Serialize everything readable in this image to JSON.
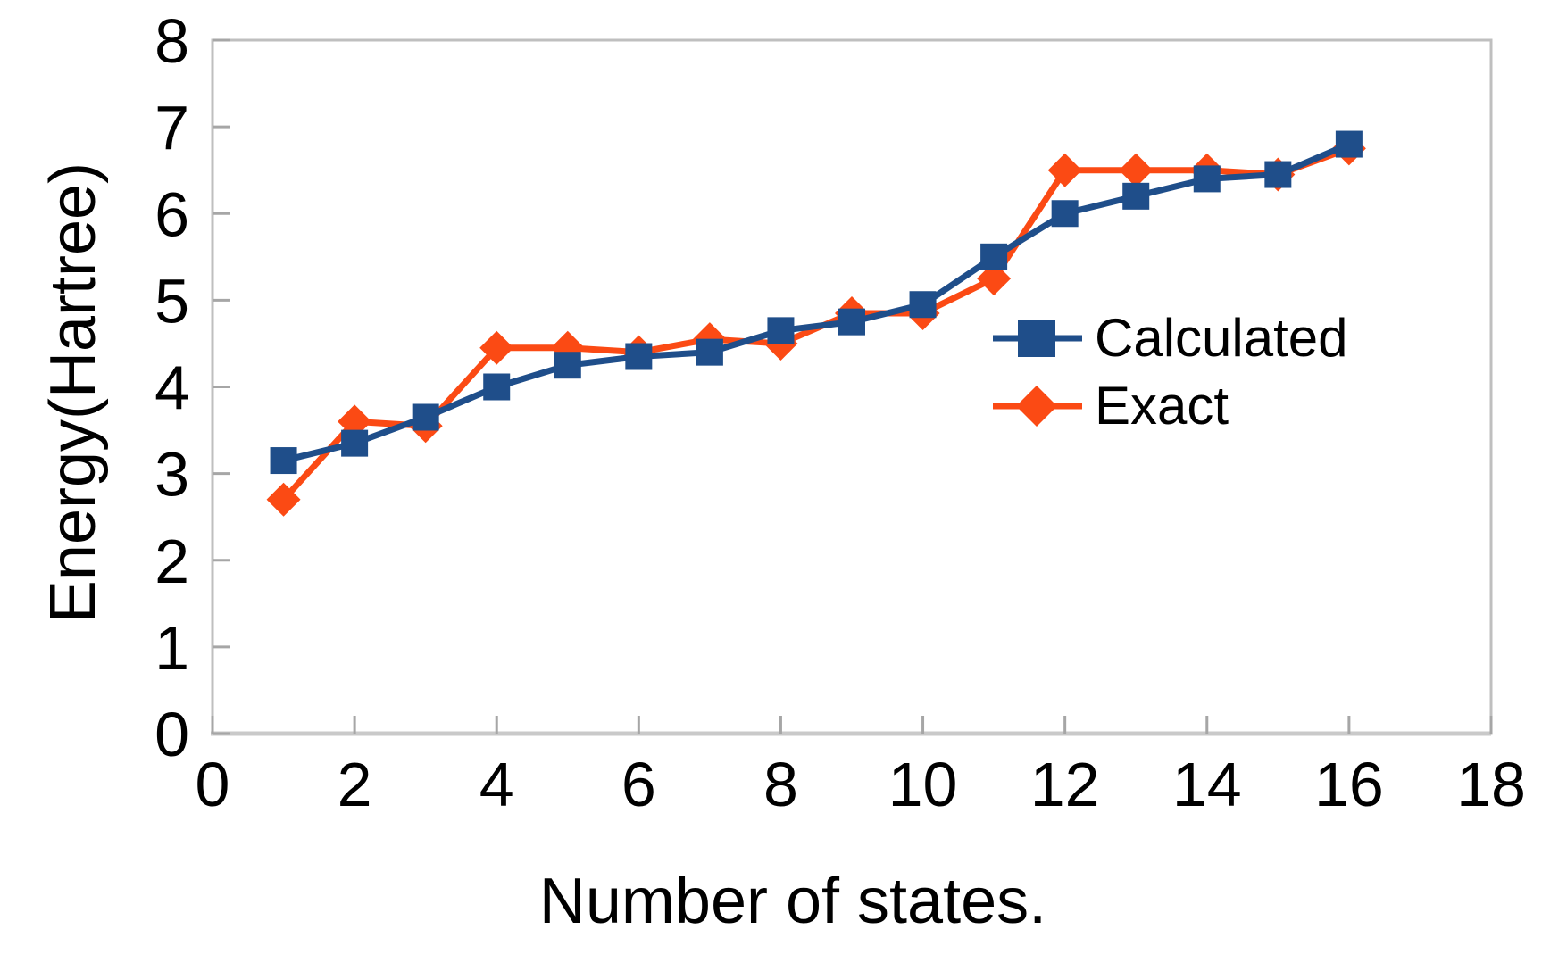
{
  "chart_data": {
    "type": "line",
    "title": "",
    "xlabel": "Number of states.",
    "ylabel": "Energy(Hartree)",
    "xlim": [
      0,
      18
    ],
    "ylim": [
      0,
      8
    ],
    "x_ticks": [
      0,
      2,
      4,
      6,
      8,
      10,
      12,
      14,
      16,
      18
    ],
    "y_ticks": [
      0,
      1,
      2,
      3,
      4,
      5,
      6,
      7,
      8
    ],
    "grid": false,
    "legend_position": "inside-right",
    "x": [
      1,
      2,
      3,
      4,
      5,
      6,
      7,
      8,
      9,
      10,
      11,
      12,
      13,
      14,
      15,
      16
    ],
    "series": [
      {
        "name": "Calculated",
        "color": "#1F4E8A",
        "marker": "square",
        "values": [
          3.15,
          3.35,
          3.65,
          4.0,
          4.25,
          4.35,
          4.4,
          4.65,
          4.75,
          4.95,
          5.5,
          6.0,
          6.2,
          6.4,
          6.45,
          6.8
        ]
      },
      {
        "name": "Exact",
        "color": "#FB4A14",
        "marker": "diamond",
        "values": [
          2.7,
          3.6,
          3.55,
          4.45,
          4.45,
          4.4,
          4.55,
          4.5,
          4.85,
          4.85,
          5.25,
          6.5,
          6.5,
          6.5,
          6.45,
          6.75
        ]
      }
    ],
    "axis_style": {
      "axis_color": "#BFBFBF",
      "tick_color": "#A6A6A6",
      "text_color": "#000000"
    }
  }
}
